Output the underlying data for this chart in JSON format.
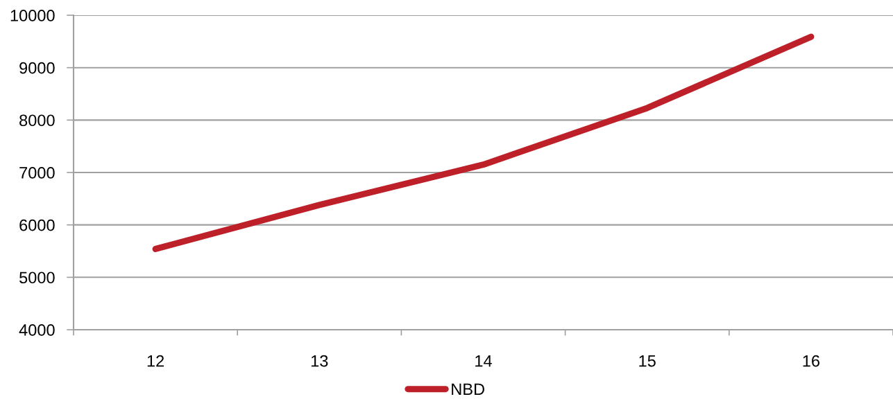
{
  "chart_data": {
    "type": "line",
    "categories": [
      "12",
      "13",
      "14",
      "15",
      "16"
    ],
    "series": [
      {
        "name": "NBD",
        "color": "#be2029",
        "values": [
          5540,
          6380,
          7150,
          8230,
          9590
        ]
      }
    ],
    "ylim": [
      4000,
      10000
    ],
    "yticks": [
      4000,
      5000,
      6000,
      7000,
      8000,
      9000,
      10000
    ],
    "grid": "y",
    "legend": "bottom",
    "line_style": "solid"
  }
}
